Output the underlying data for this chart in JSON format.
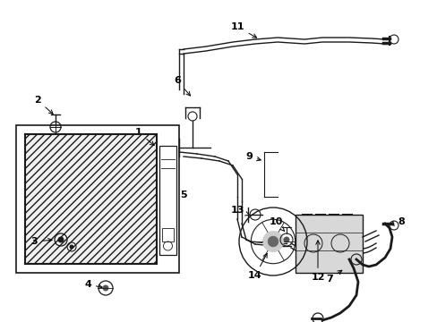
{
  "background_color": "#ffffff",
  "line_color": "#1a1a1a",
  "figsize": [
    4.89,
    3.6
  ],
  "dpi": 100,
  "label_data": [
    [
      1,
      0.175,
      0.395,
      0.195,
      0.42
    ],
    [
      2,
      0.068,
      0.32,
      0.085,
      0.345
    ],
    [
      3,
      0.055,
      0.53,
      0.095,
      0.53
    ],
    [
      4,
      0.135,
      0.66,
      0.155,
      0.64
    ],
    [
      5,
      0.31,
      0.43,
      0.295,
      0.46
    ],
    [
      6,
      0.335,
      0.215,
      0.35,
      0.245
    ],
    [
      7,
      0.565,
      0.6,
      0.58,
      0.57
    ],
    [
      8,
      0.88,
      0.455,
      0.855,
      0.455
    ],
    [
      9,
      0.545,
      0.31,
      0.565,
      0.345
    ],
    [
      10,
      0.6,
      0.38,
      0.61,
      0.4
    ],
    [
      11,
      0.49,
      0.095,
      0.505,
      0.115
    ],
    [
      12,
      0.68,
      0.495,
      0.685,
      0.465
    ],
    [
      13,
      0.53,
      0.455,
      0.555,
      0.47
    ],
    [
      14,
      0.535,
      0.56,
      0.555,
      0.545
    ]
  ]
}
